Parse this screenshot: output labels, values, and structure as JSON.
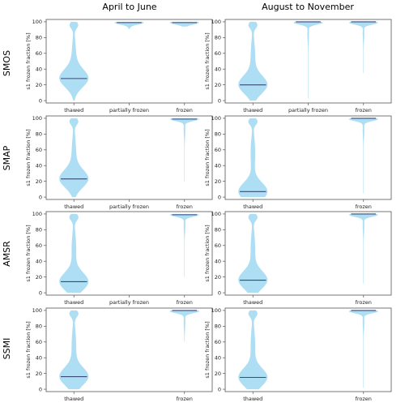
{
  "figure": {
    "column_titles": [
      "April to June",
      "August to November"
    ],
    "row_labels": [
      "SMOS",
      "SMAP",
      "AMSR",
      "SSMI"
    ],
    "colors": {
      "violin": "#a9dcf2",
      "median": "#3b4a78",
      "frame": "#555555"
    }
  },
  "chart_data": [
    {
      "type": "violin",
      "row": "SMOS",
      "period": "April to June",
      "categories": [
        "thawed",
        "partially frozen",
        "frozen"
      ],
      "ylabel": "s1 frozen fraction [%]",
      "ylim": [
        -3,
        103
      ],
      "yticks": [
        0,
        20,
        40,
        60,
        80,
        100
      ],
      "medians": [
        28,
        99,
        99
      ],
      "ranges": [
        [
          0,
          100
        ],
        [
          91,
          100
        ],
        [
          94,
          100
        ]
      ]
    },
    {
      "type": "violin",
      "row": "SMOS",
      "period": "August to November",
      "categories": [
        "thawed",
        "partially frozen",
        "frozen"
      ],
      "ylabel": "s1 frozen fraction [%]",
      "ylim": [
        -3,
        103
      ],
      "yticks": [
        0,
        20,
        40,
        60,
        80,
        100
      ],
      "medians": [
        20,
        100,
        100
      ],
      "ranges": [
        [
          0,
          100
        ],
        [
          3,
          100
        ],
        [
          35,
          100
        ]
      ]
    },
    {
      "type": "violin",
      "row": "SMAP",
      "period": "April to June",
      "categories": [
        "thawed",
        "partially frozen",
        "frozen"
      ],
      "ylabel": "s1 frozen fraction [%]",
      "ylim": [
        -3,
        103
      ],
      "yticks": [
        0,
        20,
        40,
        60,
        80,
        100
      ],
      "medians": [
        23,
        null,
        99
      ],
      "ranges": [
        [
          0,
          100
        ],
        null,
        [
          20,
          100
        ]
      ]
    },
    {
      "type": "violin",
      "row": "SMAP",
      "period": "August to November",
      "categories": [
        "thawed",
        "frozen"
      ],
      "ylabel": "s1 frozen fraction [%]",
      "ylim": [
        -3,
        103
      ],
      "yticks": [
        0,
        20,
        40,
        60,
        80,
        100
      ],
      "medians": [
        7,
        100
      ],
      "ranges": [
        [
          0,
          100
        ],
        [
          5,
          100
        ]
      ]
    },
    {
      "type": "violin",
      "row": "AMSR",
      "period": "April to June",
      "categories": [
        "thawed",
        "partially frozen",
        "frozen"
      ],
      "ylabel": "s1 frozen fraction [%]",
      "ylim": [
        -3,
        103
      ],
      "yticks": [
        0,
        20,
        40,
        60,
        80,
        100
      ],
      "medians": [
        14,
        null,
        99
      ],
      "ranges": [
        [
          0,
          100
        ],
        null,
        [
          20,
          100
        ]
      ]
    },
    {
      "type": "violin",
      "row": "AMSR",
      "period": "August to November",
      "categories": [
        "thawed",
        "frozen"
      ],
      "ylabel": "s1 frozen fraction [%]",
      "ylim": [
        -3,
        103
      ],
      "yticks": [
        0,
        20,
        40,
        60,
        80,
        100
      ],
      "medians": [
        16,
        100
      ],
      "ranges": [
        [
          0,
          100
        ],
        [
          12,
          100
        ]
      ]
    },
    {
      "type": "violin",
      "row": "SSMI",
      "period": "April to June",
      "categories": [
        "thawed",
        "frozen"
      ],
      "ylabel": "s1 frozen fraction [%]",
      "ylim": [
        -3,
        103
      ],
      "yticks": [
        0,
        20,
        40,
        60,
        80,
        100
      ],
      "medians": [
        16,
        100
      ],
      "ranges": [
        [
          0,
          100
        ],
        [
          60,
          100
        ]
      ]
    },
    {
      "type": "violin",
      "row": "SSMI",
      "period": "August to November",
      "categories": [
        "thawed",
        "frozen"
      ],
      "ylabel": "s1 frozen fraction [%]",
      "ylim": [
        -3,
        103
      ],
      "yticks": [
        0,
        20,
        40,
        60,
        80,
        100
      ],
      "medians": [
        15,
        100
      ],
      "ranges": [
        [
          0,
          100
        ],
        [
          2,
          100
        ]
      ]
    }
  ]
}
